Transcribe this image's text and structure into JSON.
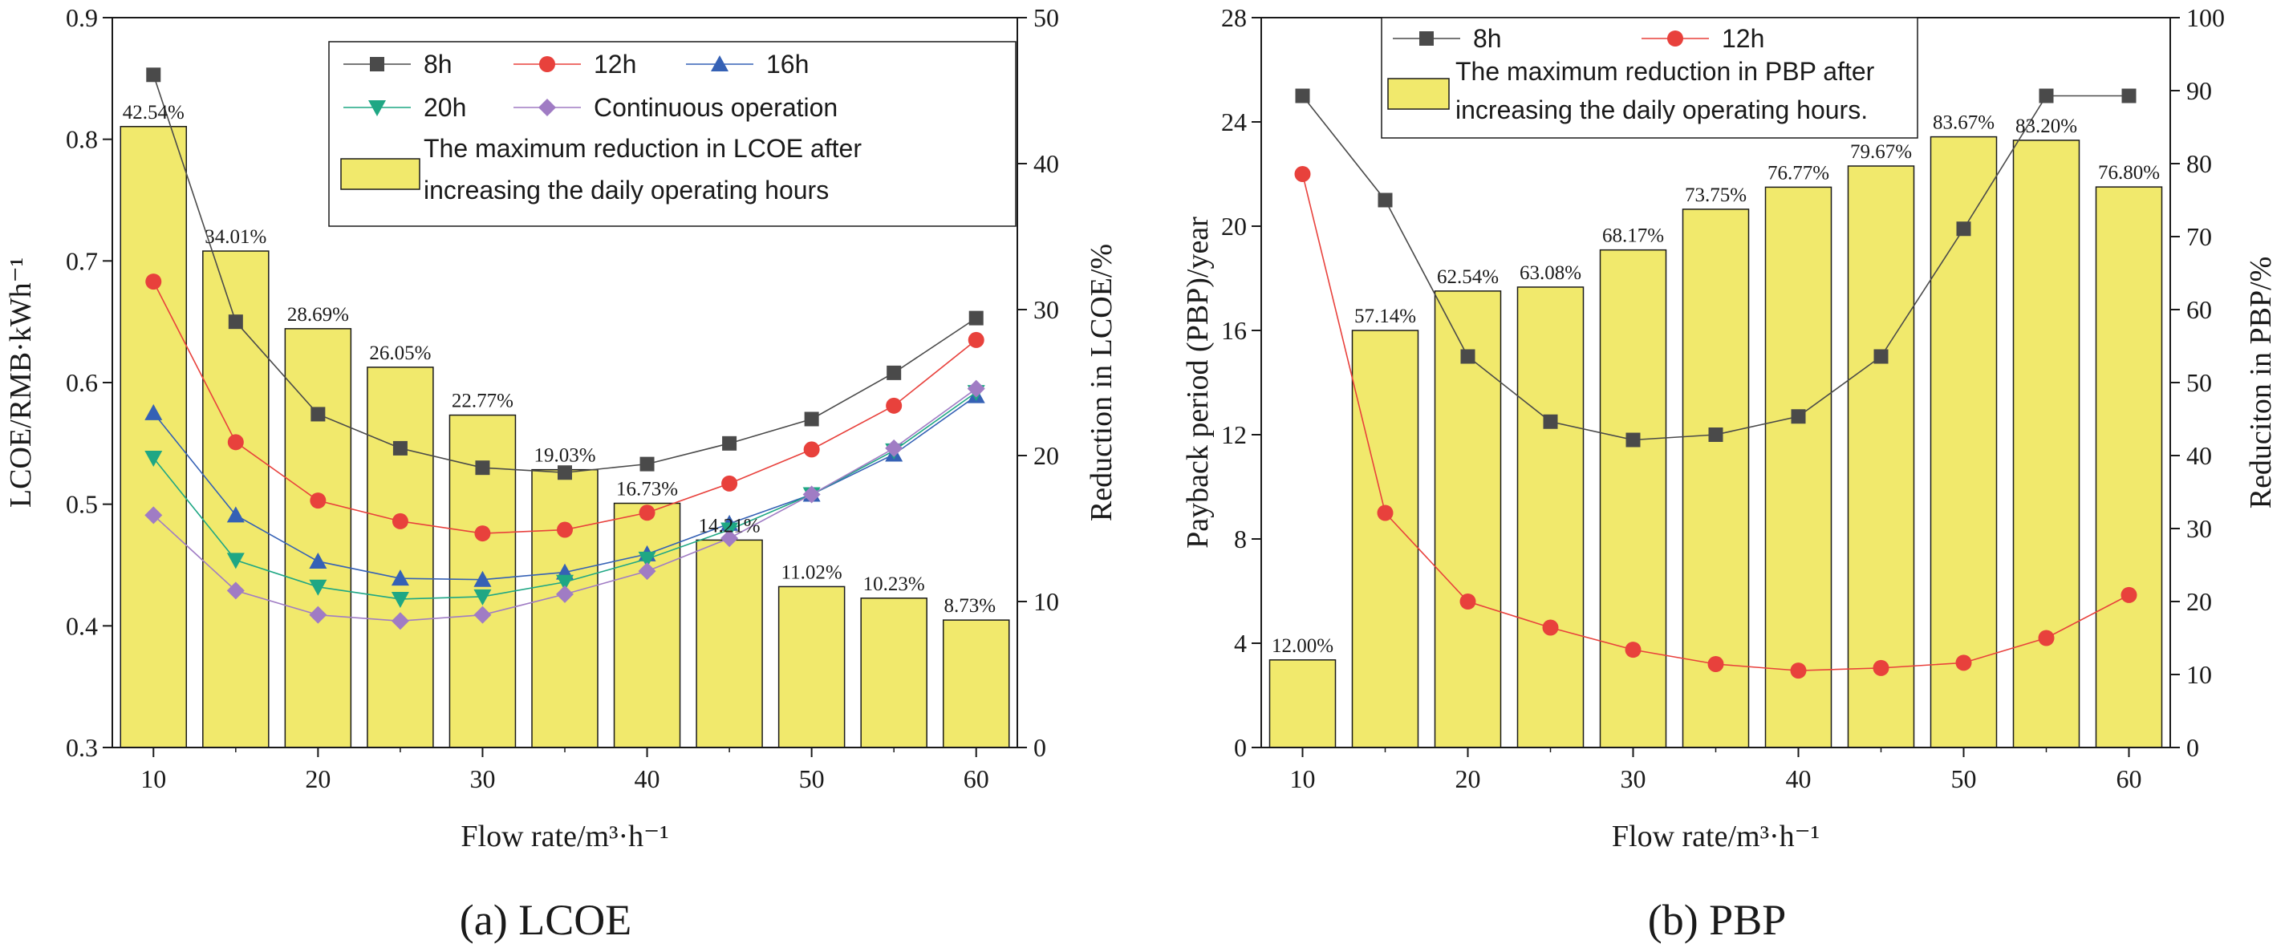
{
  "chart_data": [
    {
      "id": "lcoe",
      "type": "bar+line",
      "caption": "(a) LCOE",
      "xlabel": "Flow rate/m³·h⁻¹",
      "ylabel": "LCOE/RMB·kWh⁻¹",
      "y2label": "Reduction in LCOE/%",
      "x": [
        10,
        15,
        20,
        25,
        30,
        35,
        40,
        45,
        50,
        55,
        60
      ],
      "xticks": [
        10,
        20,
        30,
        40,
        50,
        60
      ],
      "xlim": [
        7.5,
        62.5
      ],
      "ylim": [
        0.3,
        0.9
      ],
      "yticks": [
        "0.3",
        "0.4",
        "0.5",
        "0.6",
        "0.7",
        "0.8",
        "0.9"
      ],
      "y2lim": [
        0,
        50
      ],
      "y2ticks": [
        "0",
        "10",
        "20",
        "30",
        "40",
        "50"
      ],
      "bars": {
        "name": "The maximum reduction in LCOE after increasing the daily operating hours",
        "legend_lines": [
          "The maximum reduction in LCOE after",
          "increasing the daily operating hours"
        ],
        "color": "#f1e96c",
        "values": [
          42.54,
          34.01,
          28.69,
          26.05,
          22.77,
          19.03,
          16.73,
          14.21,
          11.02,
          10.23,
          8.73
        ],
        "labels": [
          "42.54%",
          "34.01%",
          "28.69%",
          "26.05%",
          "22.77%",
          "19.03%",
          "16.73%",
          "14.21%",
          "11.02%",
          "10.23%",
          "8.73%"
        ]
      },
      "series": [
        {
          "name": "8h",
          "color": "#4a4a4a",
          "marker": "square",
          "values": [
            0.853,
            0.65,
            0.574,
            0.546,
            0.53,
            0.526,
            0.533,
            0.55,
            0.57,
            0.608,
            0.653
          ]
        },
        {
          "name": "12h",
          "color": "#e8413c",
          "marker": "circle",
          "values": [
            0.683,
            0.551,
            0.503,
            0.486,
            0.476,
            0.479,
            0.493,
            0.517,
            0.545,
            0.581,
            0.635
          ]
        },
        {
          "name": "16h",
          "color": "#3561b5",
          "marker": "triangle-up",
          "values": [
            0.575,
            0.491,
            0.453,
            0.439,
            0.438,
            0.444,
            0.459,
            0.484,
            0.508,
            0.541,
            0.589
          ]
        },
        {
          "name": "20h",
          "color": "#1fa784",
          "marker": "triangle-down",
          "values": [
            0.538,
            0.454,
            0.432,
            0.422,
            0.424,
            0.436,
            0.455,
            0.479,
            0.508,
            0.544,
            0.592
          ]
        },
        {
          "name": "Continuous operation",
          "color": "#a07cc4",
          "marker": "diamond",
          "values": [
            0.491,
            0.429,
            0.409,
            0.404,
            0.409,
            0.426,
            0.445,
            0.472,
            0.508,
            0.546,
            0.595
          ]
        }
      ]
    },
    {
      "id": "pbp",
      "type": "bar+line",
      "caption": "(b) PBP",
      "xlabel": "Flow rate/m³·h⁻¹",
      "ylabel": "Payback period (PBP)/year",
      "y2label": "Reduciton in PBP/%",
      "x": [
        10,
        15,
        20,
        25,
        30,
        35,
        40,
        45,
        50,
        55,
        60
      ],
      "xticks": [
        10,
        20,
        30,
        40,
        50,
        60
      ],
      "xlim": [
        7.5,
        62.5
      ],
      "ylim": [
        0,
        28
      ],
      "yticks": [
        "0",
        "4",
        "8",
        "12",
        "16",
        "20",
        "24",
        "28"
      ],
      "y2lim": [
        0,
        100
      ],
      "y2ticks": [
        "0",
        "10",
        "20",
        "30",
        "40",
        "50",
        "60",
        "70",
        "80",
        "90",
        "100"
      ],
      "bars": {
        "name": "The maximum reduction in PBP after increasing the daily operating hours.",
        "legend_lines": [
          "The maximum reduction in PBP after",
          "increasing the daily operating hours."
        ],
        "color": "#f1e96c",
        "values": [
          12.0,
          57.14,
          62.54,
          63.08,
          68.17,
          73.75,
          76.77,
          79.67,
          83.67,
          83.2,
          76.8
        ],
        "labels": [
          "12.00%",
          "57.14%",
          "62.54%",
          "63.08%",
          "68.17%",
          "73.75%",
          "76.77%",
          "79.67%",
          "83.67%",
          "83.20%",
          "76.80%"
        ]
      },
      "series": [
        {
          "name": "8h",
          "color": "#4a4a4a",
          "marker": "square",
          "values": [
            25,
            21,
            15,
            12.5,
            11.8,
            12,
            12.7,
            15,
            19.9,
            25,
            25
          ]
        },
        {
          "name": "12h",
          "color": "#e8413c",
          "marker": "circle",
          "values": [
            22,
            9,
            5.6,
            4.6,
            3.75,
            3.2,
            2.95,
            3.05,
            3.25,
            4.2,
            5.85
          ]
        }
      ]
    }
  ]
}
